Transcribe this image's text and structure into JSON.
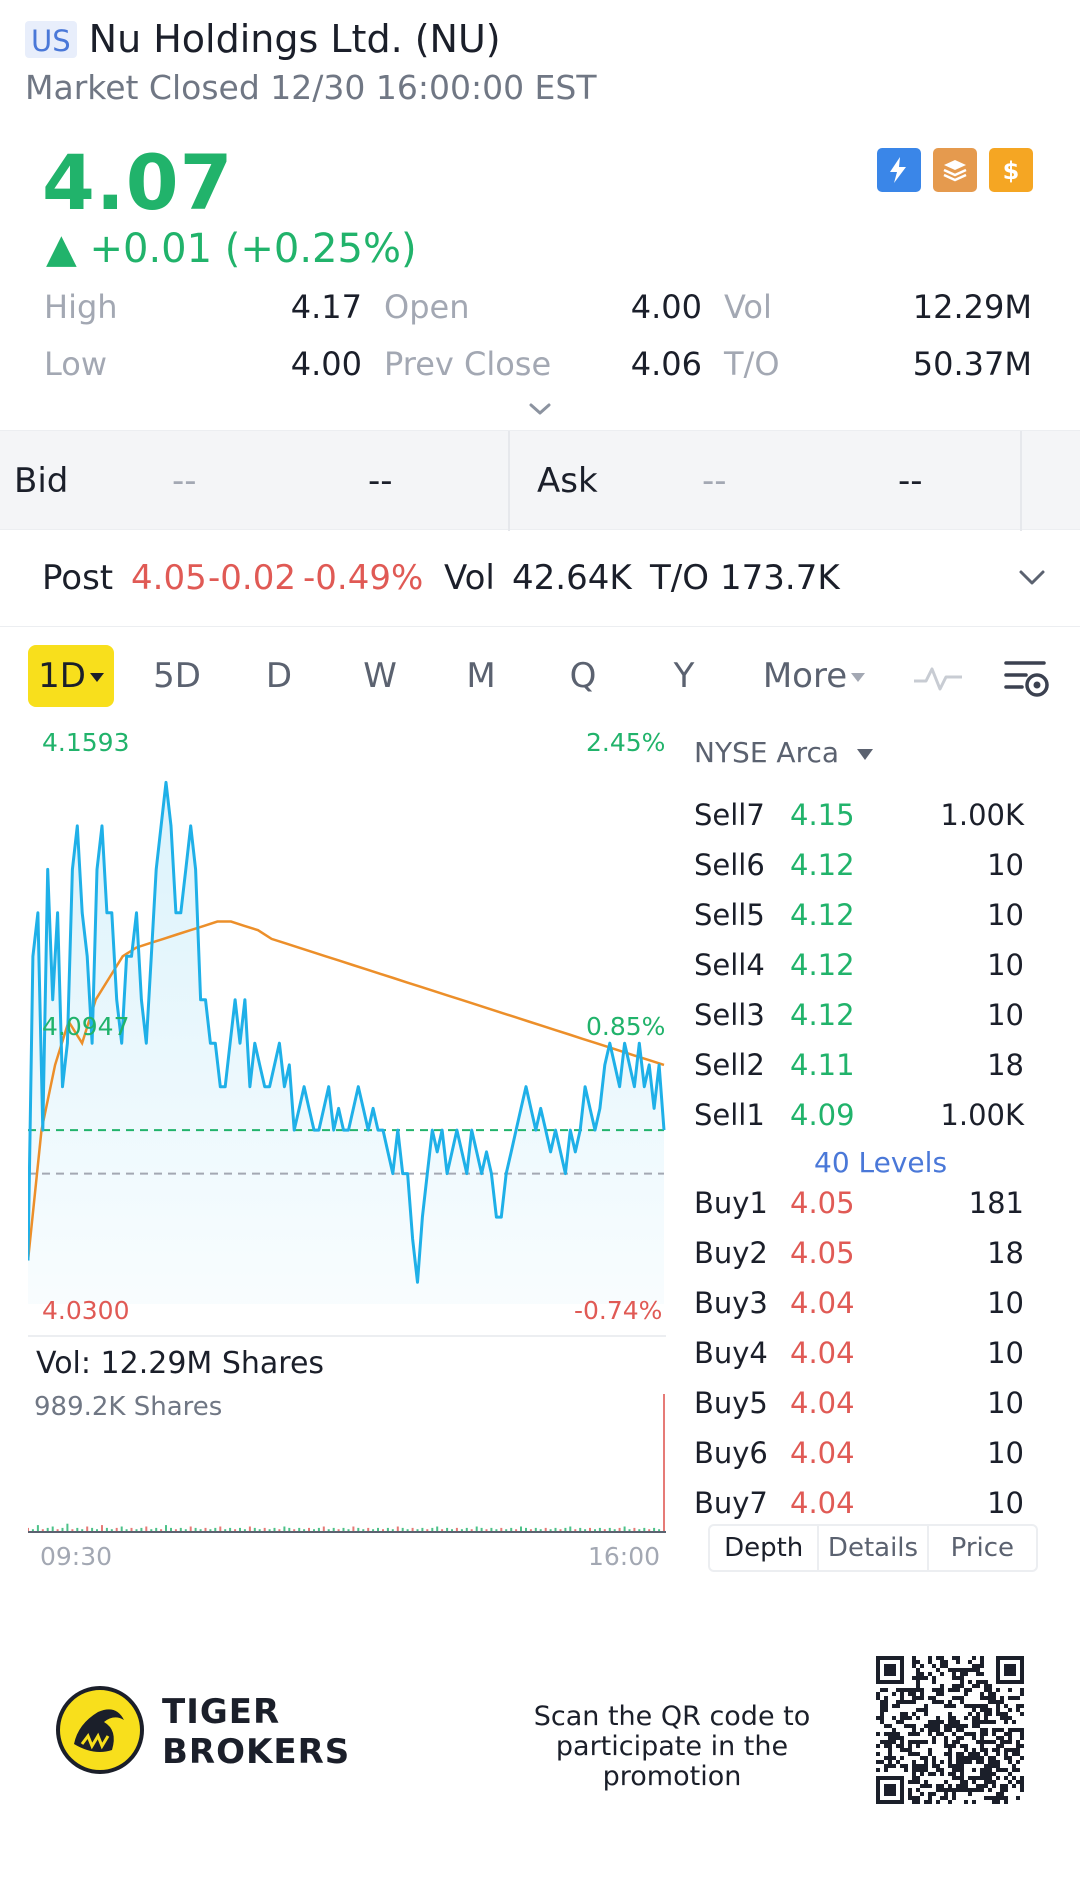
{
  "header": {
    "market_badge": "US",
    "title": "Nu Holdings Ltd. (NU)",
    "status": "Market Closed 12/30 16:00:00 EST"
  },
  "quote": {
    "price": "4.07",
    "change": "▲ +0.01 (+0.25%)",
    "stats": {
      "high_label": "High",
      "high": "4.17",
      "open_label": "Open",
      "open": "4.00",
      "vol_label": "Vol",
      "vol": "12.29M",
      "low_label": "Low",
      "low": "4.00",
      "prev_close_label": "Prev Close",
      "prev_close": "4.06",
      "to_label": "T/O",
      "to": "50.37M"
    }
  },
  "bid_ask": {
    "bid_label": "Bid",
    "bid_price": "--",
    "bid_size": "--",
    "ask_label": "Ask",
    "ask_price": "--",
    "ask_size": "--"
  },
  "post_market": {
    "label": "Post",
    "price": "4.05",
    "change": "-0.02",
    "change_pct": "-0.49%",
    "vol_label": "Vol",
    "vol": "42.64K",
    "to_label": "T/O",
    "to": "173.7K"
  },
  "period_tabs": [
    "1D",
    "5D",
    "D",
    "W",
    "M",
    "Q",
    "Y",
    "More"
  ],
  "active_tab": "1D",
  "chart_labels": {
    "top_price": "4.1593",
    "top_pct": "2.45%",
    "mid_price": "4.0947",
    "mid_pct": "0.85%",
    "bottom_price": "4.0300",
    "bottom_pct": "-0.74%",
    "vol_title": "Vol:   12.29M Shares",
    "vol_max": "989.2K Shares",
    "time_start": "09:30",
    "time_end": "16:00"
  },
  "chart_data": {
    "type": "line",
    "ylim": [
      4.03,
      4.1593
    ],
    "prev_close": 4.06,
    "open_reference": 4.07,
    "series": [
      {
        "values": [
          4.04,
          4.11,
          4.12,
          4.07,
          4.13,
          4.1,
          4.12,
          4.08,
          4.09,
          4.13,
          4.14,
          4.12,
          4.11,
          4.09,
          4.13,
          4.14,
          4.12,
          4.12,
          4.1,
          4.09,
          4.11,
          4.11,
          4.12,
          4.1,
          4.09,
          4.11,
          4.13,
          4.14,
          4.15,
          4.14,
          4.12,
          4.12,
          4.13,
          4.14,
          4.13,
          4.1,
          4.1,
          4.09,
          4.09,
          4.08,
          4.08,
          4.09,
          4.1,
          4.09,
          4.1,
          4.08,
          4.09,
          4.085,
          4.08,
          4.08,
          4.085,
          4.09,
          4.08,
          4.085,
          4.07,
          4.075,
          4.08,
          4.075,
          4.07,
          4.07,
          4.075,
          4.08,
          4.07,
          4.075,
          4.07,
          4.07,
          4.075,
          4.08,
          4.075,
          4.07,
          4.075,
          4.07,
          4.07,
          4.065,
          4.06,
          4.07,
          4.06,
          4.06,
          4.045,
          4.035,
          4.05,
          4.06,
          4.07,
          4.065,
          4.07,
          4.06,
          4.065,
          4.07,
          4.065,
          4.06,
          4.07,
          4.065,
          4.06,
          4.065,
          4.06,
          4.05,
          4.05,
          4.06,
          4.065,
          4.07,
          4.075,
          4.08,
          4.075,
          4.07,
          4.075,
          4.07,
          4.065,
          4.07,
          4.065,
          4.06,
          4.07,
          4.065,
          4.07,
          4.08,
          4.075,
          4.07,
          4.075,
          4.085,
          4.09,
          4.085,
          4.08,
          4.09,
          4.085,
          4.08,
          4.09,
          4.08,
          4.085,
          4.075,
          4.085,
          4.07
        ]
      },
      {
        "values": [
          4.04,
          4.07,
          4.085,
          4.095,
          4.09,
          4.1,
          4.105,
          4.11,
          4.112,
          4.113,
          4.114,
          4.115,
          4.116,
          4.117,
          4.118,
          4.118,
          4.117,
          4.116,
          4.114,
          4.113,
          4.112,
          4.111,
          4.11,
          4.109,
          4.108,
          4.107,
          4.106,
          4.105,
          4.104,
          4.103,
          4.102,
          4.101,
          4.1,
          4.099,
          4.098,
          4.097,
          4.096,
          4.095,
          4.094,
          4.093,
          4.092,
          4.091,
          4.09,
          4.089,
          4.088,
          4.087,
          4.086,
          4.085
        ]
      }
    ],
    "volume": [
      3,
      2,
      5,
      2,
      3,
      4,
      2,
      3,
      6,
      2,
      3,
      2,
      4,
      3,
      2,
      5,
      3,
      2,
      3,
      4,
      2,
      3,
      2,
      3,
      4,
      2,
      3,
      2,
      5,
      3,
      2,
      3,
      2,
      4,
      3,
      2,
      3,
      2,
      3,
      4,
      2,
      3,
      2,
      3,
      2,
      4,
      3,
      2,
      3,
      2,
      3,
      2,
      4,
      3,
      2,
      3,
      2,
      3,
      2,
      3,
      4,
      2,
      3,
      2,
      3,
      2,
      4,
      3,
      2,
      3,
      2,
      3,
      2,
      3,
      2,
      4,
      3,
      2,
      3,
      2,
      3,
      2,
      3,
      4,
      2,
      3,
      2,
      3,
      2,
      3,
      2,
      4,
      3,
      2,
      3,
      2,
      3,
      2,
      3,
      2,
      4,
      3,
      2,
      3,
      2,
      3,
      2,
      3,
      2,
      3,
      4,
      2,
      3,
      2,
      3,
      2,
      3,
      2,
      3,
      2,
      3,
      4,
      2,
      3,
      2,
      3,
      2,
      3,
      2,
      100
    ]
  },
  "depth": {
    "exchange": "NYSE Arca",
    "sells": [
      {
        "label": "Sell7",
        "price": "4.15",
        "qty": "1.00K"
      },
      {
        "label": "Sell6",
        "price": "4.12",
        "qty": "10"
      },
      {
        "label": "Sell5",
        "price": "4.12",
        "qty": "10"
      },
      {
        "label": "Sell4",
        "price": "4.12",
        "qty": "10"
      },
      {
        "label": "Sell3",
        "price": "4.12",
        "qty": "10"
      },
      {
        "label": "Sell2",
        "price": "4.11",
        "qty": "18"
      },
      {
        "label": "Sell1",
        "price": "4.09",
        "qty": "1.00K"
      }
    ],
    "levels": "40 Levels",
    "buys": [
      {
        "label": "Buy1",
        "price": "4.05",
        "qty": "181"
      },
      {
        "label": "Buy2",
        "price": "4.05",
        "qty": "18"
      },
      {
        "label": "Buy3",
        "price": "4.04",
        "qty": "10"
      },
      {
        "label": "Buy4",
        "price": "4.04",
        "qty": "10"
      },
      {
        "label": "Buy5",
        "price": "4.04",
        "qty": "10"
      },
      {
        "label": "Buy6",
        "price": "4.04",
        "qty": "10"
      },
      {
        "label": "Buy7",
        "price": "4.04",
        "qty": "10"
      }
    ],
    "tabs": [
      "Depth",
      "Details",
      "Price"
    ]
  },
  "footer": {
    "brand_line1": "TIGER",
    "brand_line2": "BROKERS",
    "promo_line1": "Scan the QR code to",
    "promo_line2": "participate in the promotion"
  },
  "colors": {
    "up": "#21b36b",
    "down": "#e05a55",
    "line": "#1fb0e8",
    "avg_line": "#ec8f2a",
    "accent_tab": "#f8df1c"
  },
  "icons": [
    "bolt-icon",
    "stack-icon",
    "dollar-icon",
    "chevron-down-icon",
    "indicator-icon",
    "settings-icon",
    "qr-code-icon",
    "tiger-logo-icon"
  ]
}
